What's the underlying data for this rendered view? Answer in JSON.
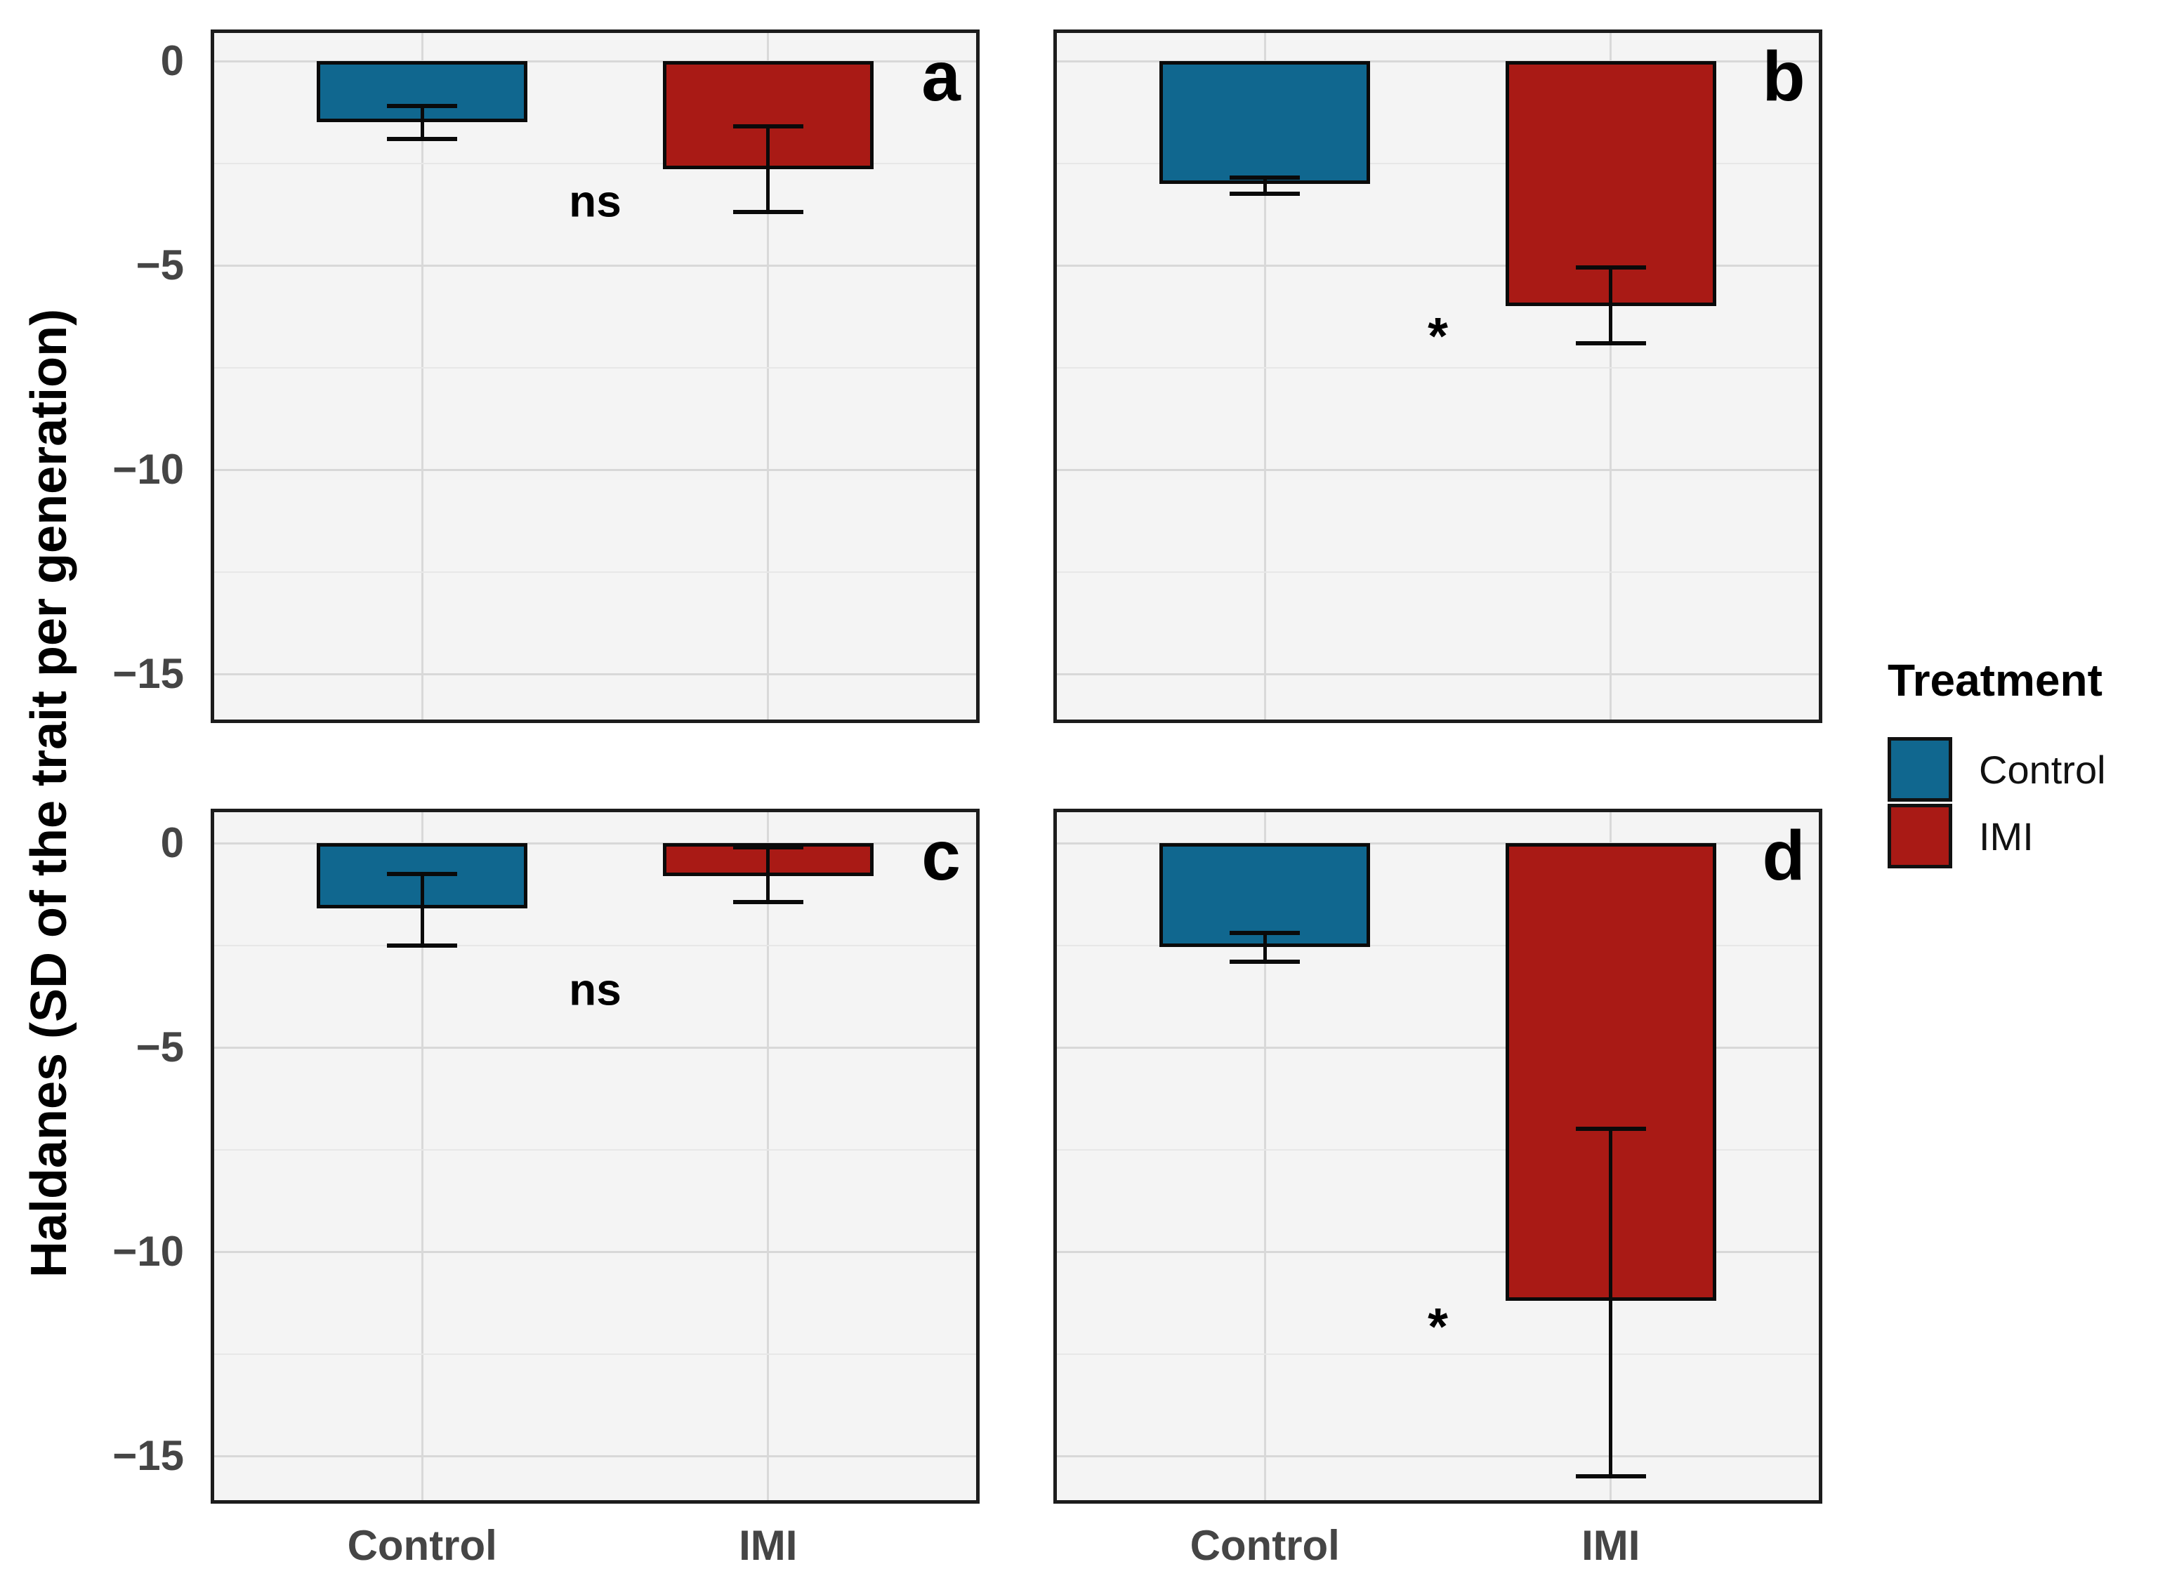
{
  "chart_data": {
    "type": "bar",
    "title": "",
    "ylabel": "Haldanes (SD of the trait per generation)",
    "xlabel": "",
    "categories": [
      "Control",
      "IMI"
    ],
    "yticks": [
      0,
      -5,
      -10,
      -15
    ],
    "ytick_labels": [
      "0",
      "−5",
      "−10",
      "−15"
    ],
    "ylim": [
      0.7,
      -16.3
    ],
    "grid": "horizontal major at 0,-5,-10,-15; horizontal minor at -2.5,-7.5,-12.5; vertical at each category",
    "legend": {
      "title": "Treatment",
      "position": "right",
      "entries": [
        {
          "label": "Control",
          "color": "#10678F"
        },
        {
          "label": "IMI",
          "color": "#A91A15"
        }
      ]
    },
    "colors": {
      "control": "#10678F",
      "imi": "#A91A15"
    },
    "panels": [
      {
        "letter": "a",
        "significance": "ns",
        "sig_y": -3.45,
        "series": [
          {
            "name": "Control",
            "value": -1.5,
            "err_low": -1.9,
            "err_high": -1.1
          },
          {
            "name": "IMI",
            "value": -2.65,
            "err_low": -3.7,
            "err_high": -1.6
          }
        ]
      },
      {
        "letter": "b",
        "significance": "*",
        "sig_y": -6.5,
        "series": [
          {
            "name": "Control",
            "value": -3.0,
            "err_low": -3.25,
            "err_high": -2.85
          },
          {
            "name": "IMI",
            "value": -6.0,
            "err_low": -6.9,
            "err_high": -5.05
          }
        ]
      },
      {
        "letter": "c",
        "significance": "ns",
        "sig_y": -3.6,
        "series": [
          {
            "name": "Control",
            "value": -1.6,
            "err_low": -2.5,
            "err_high": -0.75
          },
          {
            "name": "IMI",
            "value": -0.8,
            "err_low": -1.45,
            "err_high": -0.1
          }
        ]
      },
      {
        "letter": "d",
        "significance": "*",
        "sig_y": -11.6,
        "series": [
          {
            "name": "Control",
            "value": -2.55,
            "err_low": -2.9,
            "err_high": -2.2
          },
          {
            "name": "IMI",
            "value": -11.2,
            "err_low": -15.5,
            "err_high": -7.0
          }
        ]
      }
    ]
  }
}
